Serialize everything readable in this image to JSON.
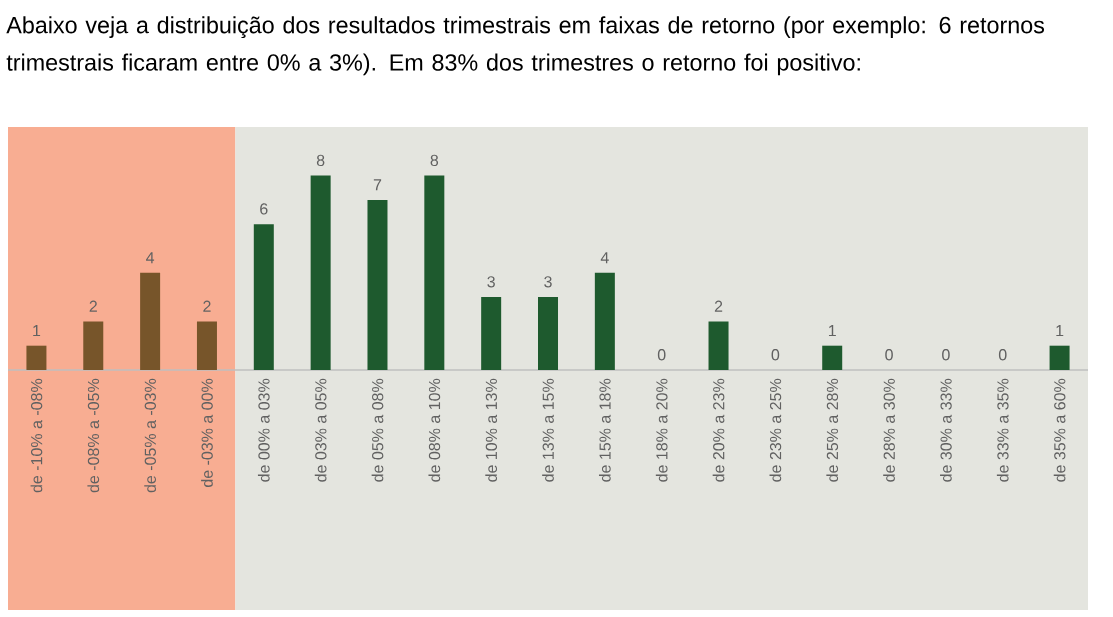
{
  "chart_data": {
    "type": "bar",
    "title": "Abaixo veja a distribuição dos resultados trimestrais em faixas de retorno (por exemplo: 6 retornos trimestrais ficaram entre 0% a 3%). Em 83% dos trimestres o retorno foi positivo:",
    "categories": [
      "de -10% a -08%",
      "de -08% a -05%",
      "de -05% a -03%",
      "de -03% a 00%",
      "de 00% a 03%",
      "de 03% a 05%",
      "de 05% a 08%",
      "de 08% a 10%",
      "de 10% a 13%",
      "de 13% a 15%",
      "de 15% a 18%",
      "de 18% a 20%",
      "de 20% a 23%",
      "de 23% a 25%",
      "de 25% a 28%",
      "de 28% a 30%",
      "de 30% a 33%",
      "de 33% a 35%",
      "de 35% a 60%"
    ],
    "values": [
      1,
      2,
      4,
      2,
      6,
      8,
      7,
      8,
      3,
      3,
      4,
      0,
      2,
      0,
      1,
      0,
      0,
      0,
      1
    ],
    "colors": [
      "#77552a",
      "#77552a",
      "#77552a",
      "#77552a",
      "#1e5a2e",
      "#1e5a2e",
      "#1e5a2e",
      "#1e5a2e",
      "#1e5a2e",
      "#1e5a2e",
      "#1e5a2e",
      "#1e5a2e",
      "#1e5a2e",
      "#1e5a2e",
      "#1e5a2e",
      "#1e5a2e",
      "#1e5a2e",
      "#1e5a2e",
      "#1e5a2e"
    ],
    "data_labels": true,
    "bands": [
      {
        "axis": "x",
        "from": "de -10% a -08%",
        "to": "de -03% a 00%",
        "color": "#f8ad92"
      },
      {
        "axis": "x",
        "from": "de 00% a 03%",
        "to": "de 35% a 60%",
        "color": "#e4e5df"
      }
    ]
  }
}
